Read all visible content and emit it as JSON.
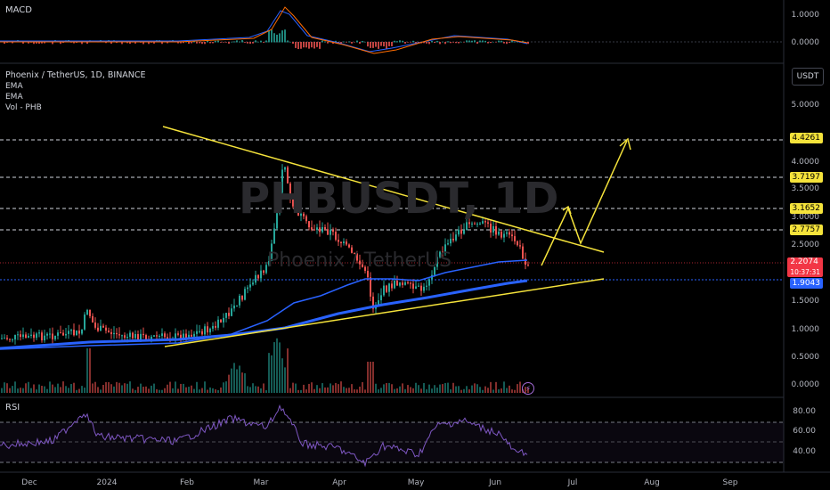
{
  "symbol_title": "Phoenix / TetherUS, 1D, BINANCE",
  "indicators": [
    "EMA",
    "EMA",
    "Vol - PHB"
  ],
  "watermark": {
    "ticker": "PHBUSDT, 1D",
    "name": "Phoenix / TetherUS"
  },
  "panes": {
    "macd": "MACD",
    "rsi": "RSI"
  },
  "currency_button": "USDT",
  "macd_axis": [
    "1.0000",
    "0.0000"
  ],
  "price_axis": [
    "5.0000",
    "4.0000",
    "3.5000",
    "3.0000",
    "2.5000",
    "1.5000",
    "1.0000",
    "0.5000",
    "0.0000"
  ],
  "rsi_axis": [
    "80.00",
    "60.00",
    "40.00"
  ],
  "price_tags": [
    {
      "value": "4.4261",
      "color": "#f5e33b",
      "text_color": "#000000"
    },
    {
      "value": "3.7197",
      "color": "#f5e33b",
      "text_color": "#000000"
    },
    {
      "value": "3.1652",
      "color": "#f5e33b",
      "text_color": "#000000"
    },
    {
      "value": "2.7757",
      "color": "#f5e33b",
      "text_color": "#000000"
    },
    {
      "value": "2.2074",
      "color": "#f23645",
      "text_color": "#ffffff",
      "sub": "10:37:31"
    },
    {
      "value": "1.9043",
      "color": "#2962ff",
      "text_color": "#ffffff"
    }
  ],
  "time_axis": [
    "Dec",
    "2024",
    "Feb",
    "Mar",
    "Apr",
    "May",
    "Jun",
    "Jul",
    "Aug",
    "Sep"
  ],
  "flash_icon_glyph": "⚡",
  "colors": {
    "up": "#26a69a",
    "down": "#ef5350",
    "trendline": "#f5e33b",
    "ema": "#2962ff",
    "rsi": "#7e57c2"
  }
}
